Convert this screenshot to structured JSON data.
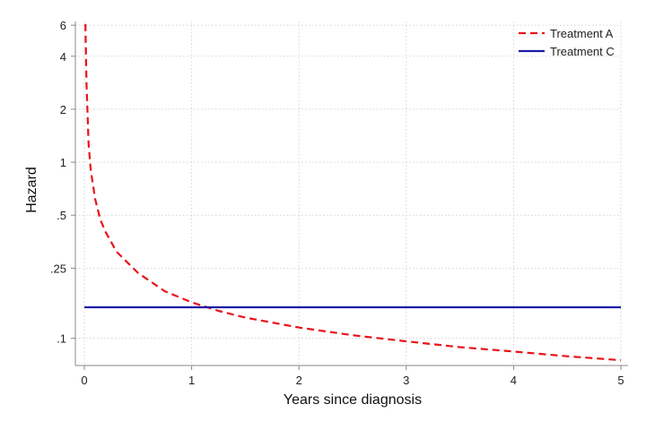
{
  "chart_data": {
    "type": "line",
    "title": "",
    "xlabel": "Years since diagnosis",
    "ylabel": "Hazard",
    "xlim": [
      0,
      5
    ],
    "ylim": [
      0.07,
      6.3
    ],
    "y_scale": "log",
    "grid": true,
    "legend_position": "top-right",
    "x_ticks": [
      {
        "value": 0,
        "label": "0"
      },
      {
        "value": 1,
        "label": "1"
      },
      {
        "value": 2,
        "label": "2"
      },
      {
        "value": 3,
        "label": "3"
      },
      {
        "value": 4,
        "label": "4"
      },
      {
        "value": 5,
        "label": "5"
      }
    ],
    "y_ticks": [
      {
        "value": 0.1,
        "label": ".1"
      },
      {
        "value": 0.25,
        "label": ".25"
      },
      {
        "value": 0.5,
        "label": ".5"
      },
      {
        "value": 1,
        "label": "1"
      },
      {
        "value": 2,
        "label": "2"
      },
      {
        "value": 4,
        "label": "4"
      },
      {
        "value": 6,
        "label": "6"
      }
    ],
    "series": [
      {
        "name": "Treatment A",
        "color": "#e8141b",
        "style": "dashed",
        "x": [
          0.01,
          0.02,
          0.04,
          0.06,
          0.1,
          0.15,
          0.2,
          0.3,
          0.5,
          0.75,
          1,
          1.25,
          1.5,
          2,
          2.5,
          3,
          3.5,
          4,
          4.5,
          5
        ],
        "y": [
          6.1,
          2.8,
          1.25,
          0.9,
          0.62,
          0.47,
          0.4,
          0.31,
          0.235,
          0.185,
          0.16,
          0.143,
          0.131,
          0.115,
          0.104,
          0.096,
          0.089,
          0.084,
          0.079,
          0.075
        ]
      },
      {
        "name": "Treatment C",
        "color": "#1a1aa6",
        "style": "solid",
        "x": [
          0,
          5
        ],
        "y": [
          0.15,
          0.15
        ]
      }
    ]
  }
}
